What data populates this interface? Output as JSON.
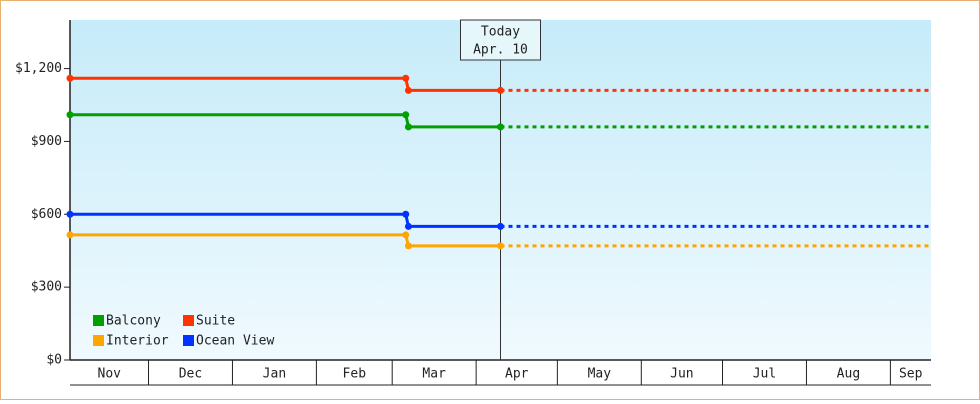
{
  "chart_data": {
    "type": "step",
    "xlim": [
      "11-02",
      "09-16"
    ],
    "xticks": [
      "12-01",
      "01-01",
      "02-01",
      "03-01",
      "04-01",
      "05-01",
      "06-01",
      "07-01",
      "08-01",
      "09-01"
    ],
    "categories": [
      "Nov",
      "Dec",
      "Jan",
      "Feb",
      "Mar",
      "Apr",
      "May",
      "Jun",
      "Jul",
      "Aug",
      "Sep"
    ],
    "ylim": [
      0,
      1400
    ],
    "yticks": [
      {
        "value": 0,
        "label": "$0"
      },
      {
        "value": 300,
        "label": "$300"
      },
      {
        "value": 600,
        "label": "$600"
      },
      {
        "value": 900,
        "label": "$900"
      },
      {
        "value": 1200,
        "label": "$1,200"
      }
    ],
    "annotation": {
      "x": "04-10",
      "lines": [
        "Today",
        "Apr. 10"
      ]
    },
    "series": [
      {
        "name": "Balcony",
        "color": "#00a000",
        "x": [
          "11-02",
          "03-06",
          "03-07",
          "04-10"
        ],
        "values": [
          1010,
          1010,
          960,
          960
        ]
      },
      {
        "name": "Suite",
        "color": "#ff3300",
        "x": [
          "11-02",
          "03-06",
          "03-07",
          "04-10"
        ],
        "values": [
          1160,
          1160,
          1110,
          1110
        ]
      },
      {
        "name": "Interior",
        "color": "#ffa500",
        "x": [
          "11-02",
          "03-06",
          "03-07",
          "04-10"
        ],
        "values": [
          515,
          515,
          470,
          470
        ]
      },
      {
        "name": "Ocean View",
        "color": "#0033ff",
        "x": [
          "11-02",
          "03-06",
          "03-07",
          "04-10"
        ],
        "values": [
          600,
          600,
          550,
          550
        ]
      }
    ],
    "legend": "bottom-left"
  }
}
